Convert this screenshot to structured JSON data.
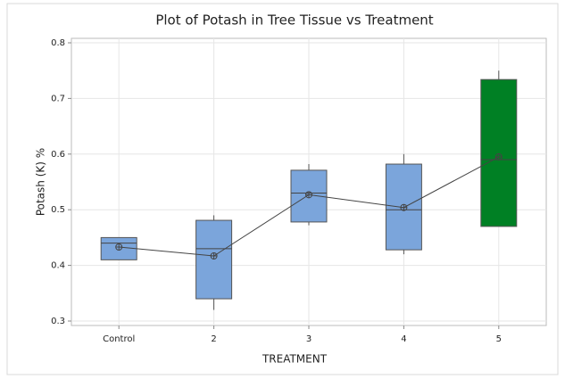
{
  "chart_data": {
    "type": "box",
    "title": "Plot of Potash in Tree Tissue vs Treatment",
    "x_label": "TREATMENT",
    "y_label": "Potash (K) %",
    "categories": [
      "Control",
      "2",
      "3",
      "4",
      "5"
    ],
    "min": [
      0.41,
      0.32,
      0.472,
      0.42,
      0.47
    ],
    "q1": [
      0.41,
      0.34,
      0.478,
      0.428,
      0.47
    ],
    "median": [
      0.44,
      0.43,
      0.53,
      0.5,
      0.59
    ],
    "q3": [
      0.45,
      0.481,
      0.571,
      0.582,
      0.734
    ],
    "max": [
      0.45,
      0.49,
      0.582,
      0.6,
      0.75
    ],
    "mean": [
      0.433,
      0.417,
      0.527,
      0.504,
      0.595
    ],
    "colors": [
      "#7ba5db",
      "#7ba5db",
      "#7ba5db",
      "#7ba5db",
      "#008024"
    ],
    "ylim": [
      0.292,
      0.808
    ],
    "yticks": [
      0.3,
      0.4,
      0.5,
      0.6,
      0.7,
      0.8
    ],
    "grid": true
  }
}
